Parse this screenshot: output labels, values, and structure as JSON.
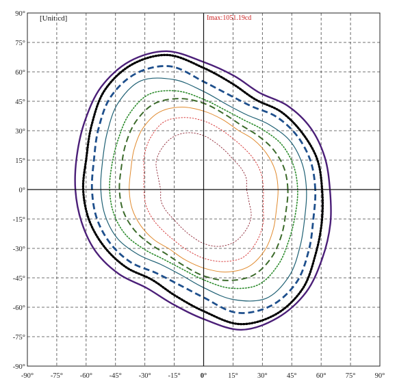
{
  "chart_data": {
    "type": "isocandela",
    "unit_label": "[Unit:cd]",
    "imax_label": "Imax:1051.19cd",
    "x_ticks": [
      "-90°",
      "-75°",
      "-60°",
      "-45°",
      "-30°",
      "-15°",
      "0°",
      "15°",
      "30°",
      "45°",
      "60°",
      "75°",
      "90°"
    ],
    "y_ticks": [
      "90°",
      "75°",
      "60°",
      "45°",
      "30°",
      "15°",
      "0°",
      "-15°",
      "-30°",
      "-45°",
      "-60°",
      "-75°",
      "-90°"
    ],
    "xlim": [
      -90,
      90
    ],
    "ylim": [
      -90,
      90
    ],
    "grid": true,
    "contours": [
      {
        "color": "#4b1f78",
        "style": "solid",
        "width": 2.4,
        "r": [
          64.5,
          64.0,
          63.0,
          60.5,
          57.0,
          60.0,
          65.0,
          73.0,
          75.5,
          74.0,
          70.0,
          67.0,
          65.5,
          64.5,
          63.5,
          61.0,
          58.0,
          60.5,
          66.0,
          74.0,
          75.5,
          74.0,
          70.0,
          67.0
        ]
      },
      {
        "color": "#000000",
        "style": "dot",
        "width": 3.2,
        "r": [
          60.5,
          60.0,
          58.0,
          56.0,
          53.0,
          56.0,
          62.0,
          71.0,
          73.5,
          71.5,
          66.0,
          62.0,
          61.5,
          60.5,
          58.5,
          56.0,
          53.0,
          56.0,
          62.0,
          71.0,
          73.5,
          71.5,
          66.0,
          62.5
        ]
      },
      {
        "color": "#1e4f8c",
        "style": "dash",
        "width": 2.8,
        "r": [
          57.0,
          56.5,
          55.0,
          52.5,
          49.0,
          50.0,
          55.0,
          65.0,
          68.5,
          67.0,
          62.0,
          58.0,
          57.0,
          56.5,
          55.0,
          52.5,
          49.0,
          50.0,
          55.0,
          65.0,
          68.5,
          67.0,
          62.0,
          58.0
        ]
      },
      {
        "color": "#1d5f73",
        "style": "solid",
        "width": 1.2,
        "r": [
          52.5,
          52.0,
          50.5,
          47.0,
          44.0,
          45.0,
          50.0,
          58.0,
          64.0,
          62.0,
          57.0,
          53.5,
          52.5,
          52.0,
          50.5,
          47.0,
          44.0,
          45.0,
          50.0,
          58.0,
          64.0,
          62.0,
          57.0,
          53.5
        ]
      },
      {
        "color": "#2a8a2a",
        "style": "dot",
        "width": 1.6,
        "r": [
          48.0,
          47.5,
          46.0,
          43.0,
          41.0,
          42.0,
          46.0,
          52.0,
          56.0,
          54.0,
          50.5,
          48.5,
          48.0,
          47.5,
          46.0,
          43.0,
          41.0,
          42.0,
          46.0,
          52.0,
          56.0,
          54.0,
          50.5,
          48.5
        ]
      },
      {
        "color": "#3b6a2a",
        "style": "dash",
        "width": 2.0,
        "r": [
          43.0,
          42.5,
          41.0,
          39.0,
          38.0,
          40.0,
          44.0,
          48.0,
          50.5,
          49.0,
          46.0,
          43.5,
          43.0,
          42.5,
          41.0,
          39.0,
          38.0,
          40.0,
          44.0,
          48.0,
          50.5,
          49.0,
          46.0,
          43.5
        ]
      },
      {
        "color": "#e08a2e",
        "style": "solid",
        "width": 1.0,
        "r": [
          38.0,
          37.8,
          37.0,
          36.0,
          35.0,
          37.0,
          40.0,
          43.5,
          45.5,
          44.0,
          41.0,
          38.5,
          38.0,
          37.8,
          37.0,
          36.0,
          35.0,
          37.0,
          40.0,
          43.5,
          45.5,
          44.0,
          41.0,
          38.5
        ]
      },
      {
        "color": "#d63a3a",
        "style": "dot",
        "width": 1.0,
        "r": [
          30.5,
          30.5,
          30.0,
          29.5,
          30.0,
          32.0,
          35.0,
          38.0,
          40.0,
          38.0,
          35.0,
          31.5,
          30.5,
          30.5,
          30.0,
          29.5,
          30.0,
          32.0,
          35.0,
          38.0,
          40.0,
          38.0,
          35.0,
          31.5
        ]
      },
      {
        "color": "#8a1f2e",
        "style": "dot",
        "width": 0.9,
        "r": [
          22.0,
          22.5,
          22.0,
          21.5,
          22.5,
          24.5,
          27.5,
          30.0,
          31.0,
          30.0,
          28.0,
          24.0,
          22.0,
          22.5,
          22.0,
          21.5,
          22.5,
          24.5,
          27.5,
          30.0,
          31.0,
          30.0,
          28.0,
          24.0
        ]
      }
    ]
  }
}
